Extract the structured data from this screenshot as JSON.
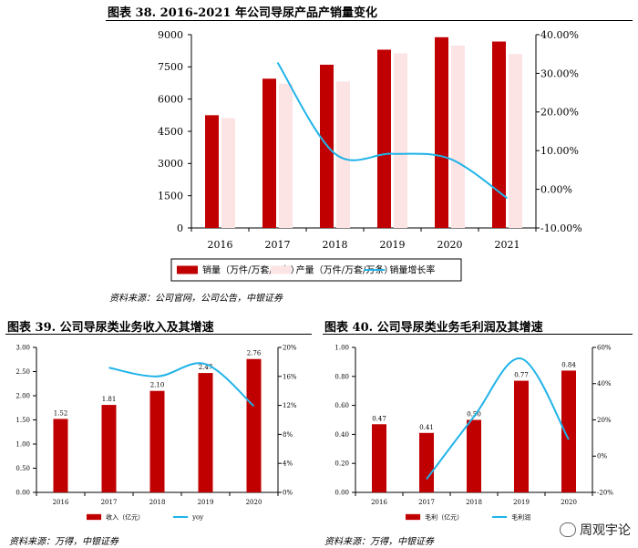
{
  "sections": [
    {
      "title": "图表 38. 2016-2021 年公司导尿产品产销量变化",
      "source": "资料来源：公司官网，公司公告，中银证券"
    },
    {
      "title": "图表 39. 公司导尿类业务收入及其增速",
      "source": "资料来源：万得，中银证券"
    },
    {
      "title": "图表 40. 公司导尿类业务毛利润及其增速",
      "source": "资料来源：万得，中银证券"
    }
  ],
  "watermark": {
    "text": "周观宇论",
    "icon": "wechat-icon"
  },
  "colors": {
    "bar_primary": "#c00000",
    "bar_secondary": "#fce4e4",
    "line": "#1fb3e8",
    "axis": "#000000"
  },
  "chart_data": [
    {
      "type": "bar",
      "categories": [
        "2016",
        "2017",
        "2018",
        "2019",
        "2020",
        "2021"
      ],
      "series": [
        {
          "name": "销量（万件/万套/万条）",
          "kind": "bar",
          "axis": "left",
          "values": [
            5250,
            6950,
            7600,
            8300,
            8880,
            8680
          ]
        },
        {
          "name": "产量（万件/万套/万条）",
          "kind": "bar",
          "axis": "left",
          "values": [
            5120,
            6720,
            6820,
            8130,
            8490,
            8100
          ]
        },
        {
          "name": "销量增长率",
          "kind": "line",
          "axis": "right",
          "values": [
            null,
            32.8,
            9.2,
            9.2,
            7.9,
            -2.3
          ]
        }
      ],
      "y_ticks": [
        "0",
        "1500",
        "3000",
        "4500",
        "6000",
        "7500",
        "9000"
      ],
      "ylim": [
        0,
        9000
      ],
      "y2_ticks": [
        "-10.00%",
        "0.00%",
        "10.00%",
        "20.00%",
        "30.00%",
        "40.00%"
      ],
      "y2lim": [
        -10,
        40
      ],
      "legend_position": "bottom"
    },
    {
      "type": "bar",
      "categories": [
        "2016",
        "2017",
        "2018",
        "2019",
        "2020"
      ],
      "series": [
        {
          "name": "收入（亿元）",
          "kind": "bar",
          "axis": "left",
          "values": [
            1.52,
            1.81,
            2.1,
            2.47,
            2.76
          ],
          "labels": [
            "1.52",
            "1.81",
            "2.10",
            "2.47",
            "2.76"
          ]
        },
        {
          "name": "yoy",
          "kind": "line",
          "axis": "right",
          "values": [
            null,
            17.2,
            16.0,
            17.7,
            11.9
          ]
        }
      ],
      "y_ticks": [
        "0.00",
        "0.50",
        "1.00",
        "1.50",
        "2.00",
        "2.50",
        "3.00"
      ],
      "ylim": [
        0,
        3
      ],
      "y2_ticks": [
        "0%",
        "4%",
        "8%",
        "12%",
        "16%",
        "20%"
      ],
      "y2lim": [
        0,
        20
      ],
      "legend_position": "bottom"
    },
    {
      "type": "bar",
      "categories": [
        "2016",
        "2017",
        "2018",
        "2019",
        "2020"
      ],
      "series": [
        {
          "name": "毛利（亿元）",
          "kind": "bar",
          "axis": "left",
          "values": [
            0.47,
            0.41,
            0.5,
            0.77,
            0.84
          ],
          "labels": [
            "0.47",
            "0.41",
            "0.50",
            "0.77",
            "0.84"
          ]
        },
        {
          "name": "毛利润",
          "kind": "line",
          "axis": "right",
          "values": [
            null,
            -12.7,
            21.8,
            53.8,
            9.1
          ]
        }
      ],
      "y_ticks": [
        "0.00",
        "0.20",
        "0.40",
        "0.60",
        "0.80",
        "1.00"
      ],
      "ylim": [
        0,
        1
      ],
      "y2_ticks": [
        "-20%",
        "0%",
        "20%",
        "40%",
        "60%"
      ],
      "y2lim": [
        -20,
        60
      ],
      "legend_position": "bottom"
    }
  ]
}
